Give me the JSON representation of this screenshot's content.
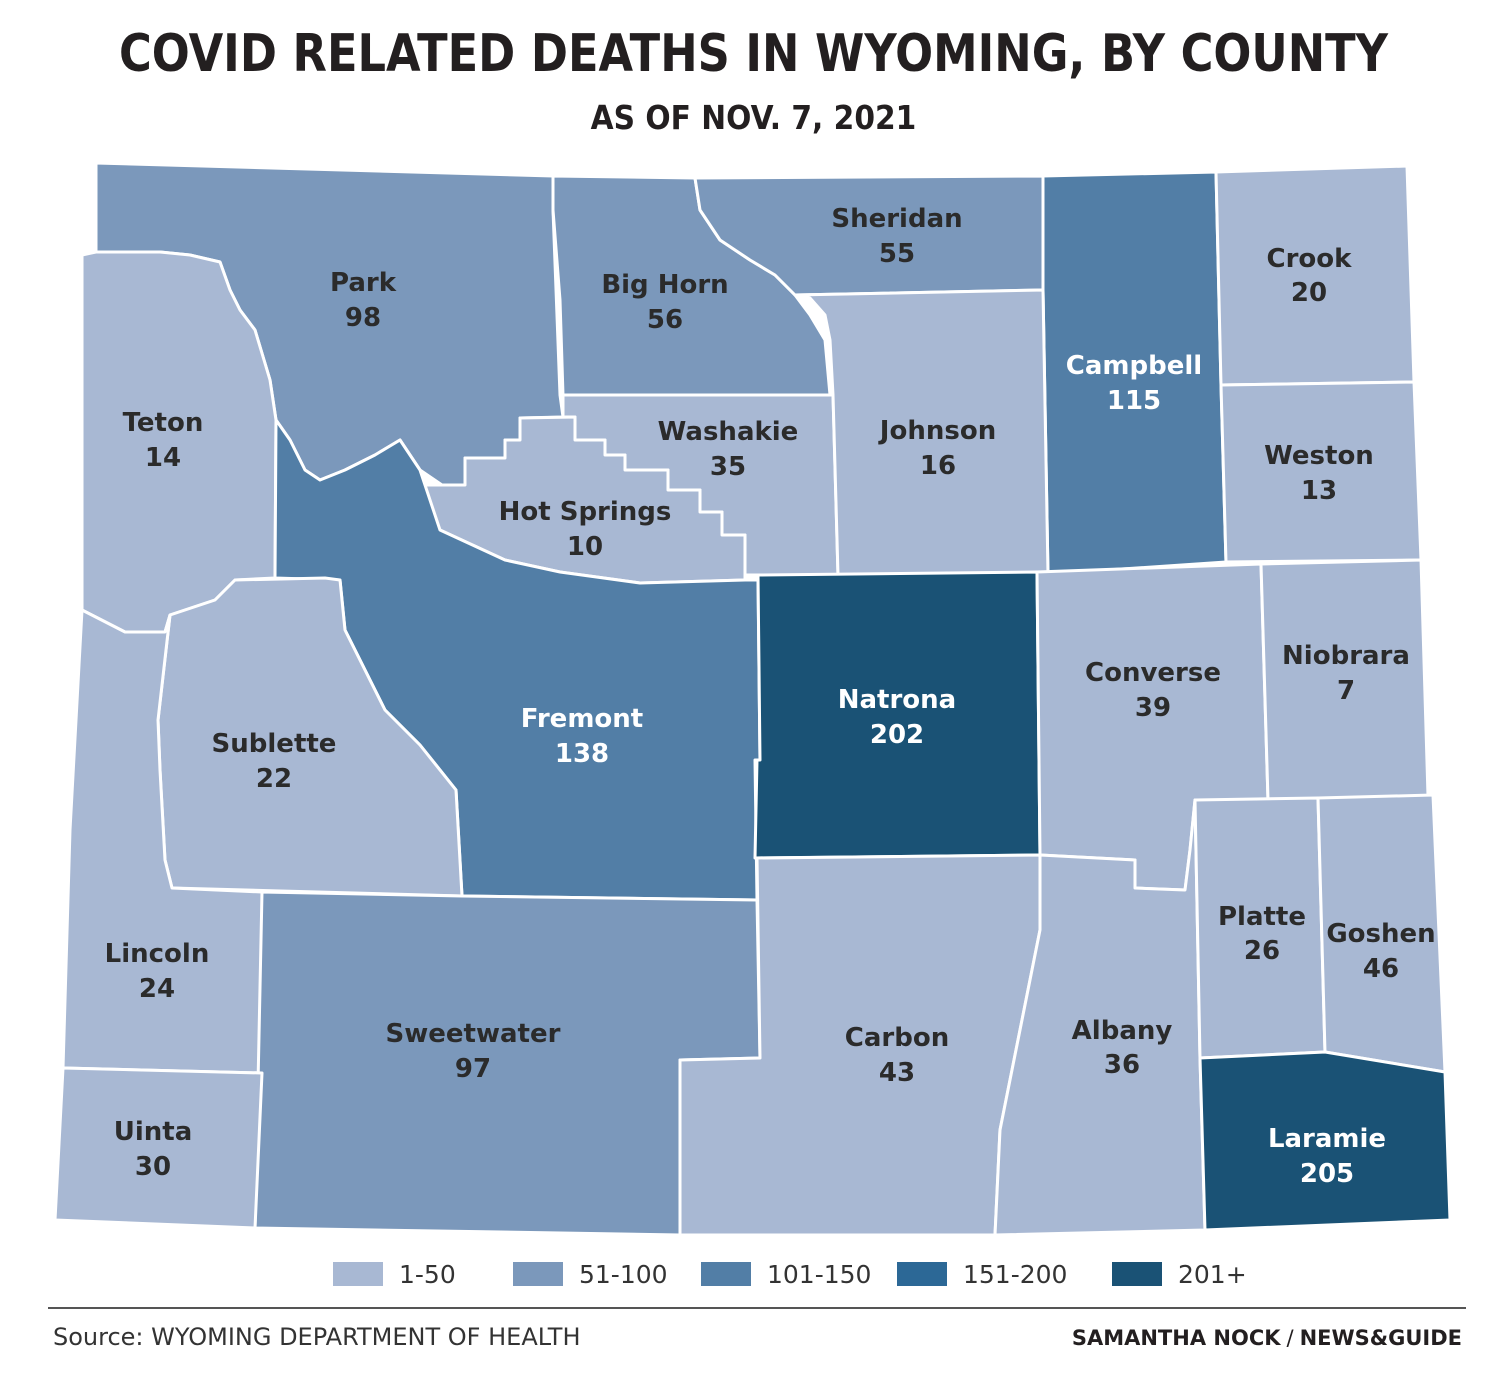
{
  "header": {
    "title": "COVID RELATED DEATHS IN WYOMING, BY COUNTY",
    "subtitle": "AS OF NOV. 7, 2021"
  },
  "legend": {
    "items": [
      {
        "label": "1-50",
        "color": "#a8b8d3"
      },
      {
        "label": "51-100",
        "color": "#7b98bb"
      },
      {
        "label": "101-150",
        "color": "#527ea6"
      },
      {
        "label": "151-200",
        "color": "#2c6896"
      },
      {
        "label": "201+",
        "color": "#1a5275"
      }
    ]
  },
  "counties": {
    "park": {
      "name": "Park",
      "deaths": "98"
    },
    "big_horn": {
      "name": "Big Horn",
      "deaths": "56"
    },
    "sheridan": {
      "name": "Sheridan",
      "deaths": "55"
    },
    "campbell": {
      "name": "Campbell",
      "deaths": "115"
    },
    "crook": {
      "name": "Crook",
      "deaths": "20"
    },
    "teton": {
      "name": "Teton",
      "deaths": "14"
    },
    "washakie": {
      "name": "Washakie",
      "deaths": "35"
    },
    "johnson": {
      "name": "Johnson",
      "deaths": "16"
    },
    "weston": {
      "name": "Weston",
      "deaths": "13"
    },
    "hot_springs": {
      "name": "Hot Springs",
      "deaths": "10"
    },
    "fremont": {
      "name": "Fremont",
      "deaths": "138"
    },
    "natrona": {
      "name": "Natrona",
      "deaths": "202"
    },
    "converse": {
      "name": "Converse",
      "deaths": "39"
    },
    "niobrara": {
      "name": "Niobrara",
      "deaths": "7"
    },
    "sublette": {
      "name": "Sublette",
      "deaths": "22"
    },
    "lincoln": {
      "name": "Lincoln",
      "deaths": "24"
    },
    "sweetwater": {
      "name": "Sweetwater",
      "deaths": "97"
    },
    "carbon": {
      "name": "Carbon",
      "deaths": "43"
    },
    "albany": {
      "name": "Albany",
      "deaths": "36"
    },
    "platte": {
      "name": "Platte",
      "deaths": "26"
    },
    "goshen": {
      "name": "Goshen",
      "deaths": "46"
    },
    "uinta": {
      "name": "Uinta",
      "deaths": "30"
    },
    "laramie": {
      "name": "Laramie",
      "deaths": "205"
    }
  },
  "footer": {
    "source": "Source: WYOMING DEPARTMENT OF HEALTH",
    "author": "SAMANTHA NOCK",
    "separator": "/",
    "org": "NEWS&GUIDE"
  }
}
